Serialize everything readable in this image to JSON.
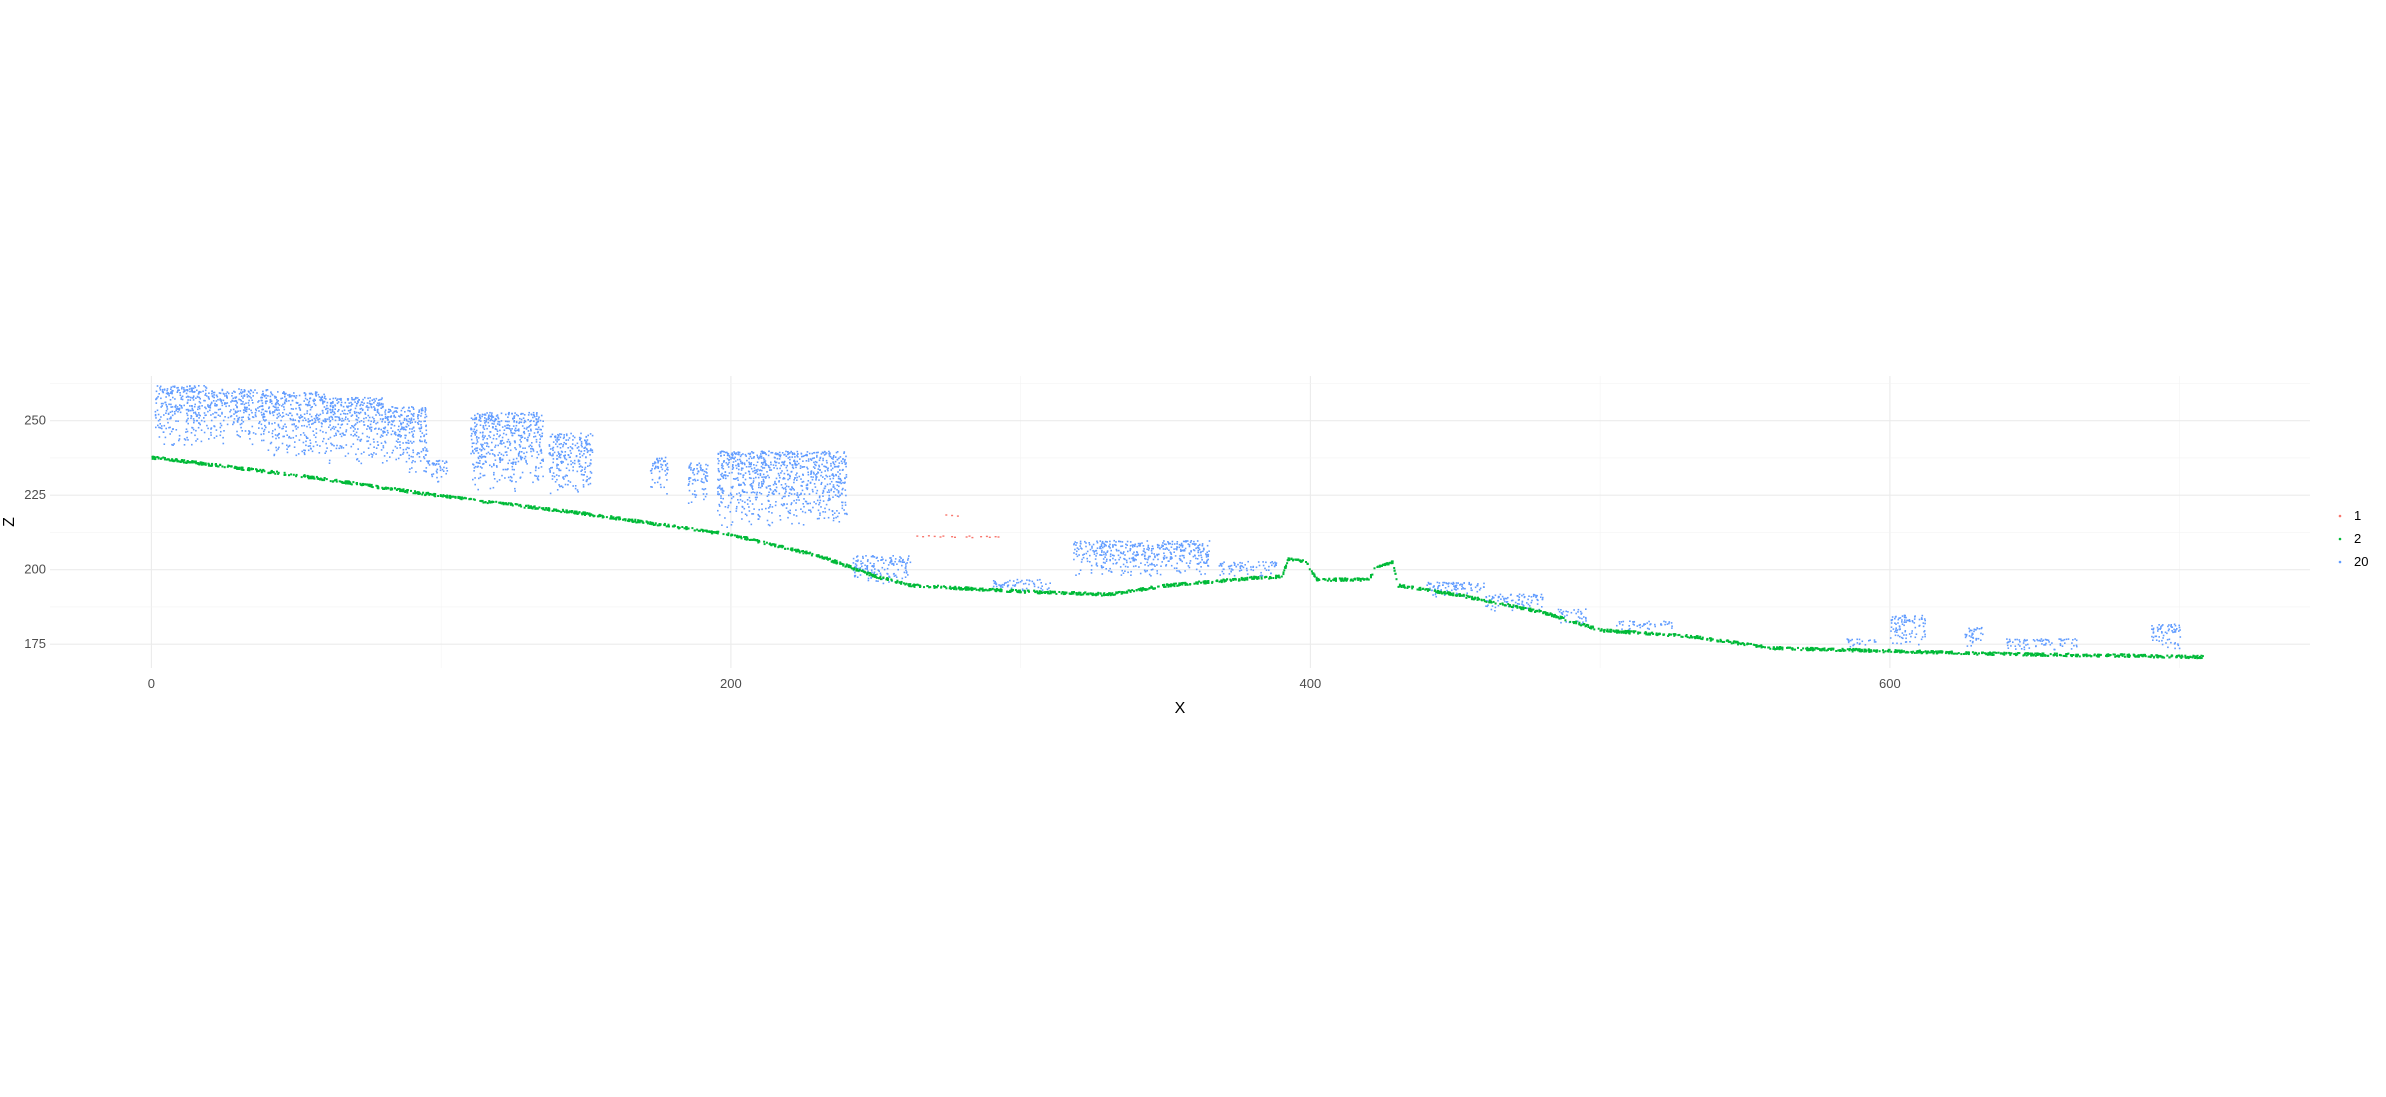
{
  "chart_data": {
    "type": "scatter",
    "title": "",
    "xlabel": "X",
    "ylabel": "Z",
    "xlim": [
      -35,
      745
    ],
    "ylim": [
      167,
      265
    ],
    "x_ticks": [
      0,
      200,
      400,
      600
    ],
    "x_tick_labels": [
      "0",
      "200",
      "400",
      "600"
    ],
    "y_ticks": [
      175,
      200,
      225,
      250
    ],
    "y_tick_labels": [
      "175",
      "200",
      "225",
      "250"
    ],
    "grid": true,
    "legend": {
      "title": "",
      "position": "right",
      "entries": [
        {
          "label": "1",
          "color": "#F8766D"
        },
        {
          "label": "2",
          "color": "#00BA38"
        },
        {
          "label": "20",
          "color": "#619CFF"
        }
      ]
    },
    "series": [
      {
        "name": "1",
        "color": "#F8766D",
        "points": [
          [
            264,
            211.5
          ],
          [
            266,
            211.3
          ],
          [
            268,
            211.6
          ],
          [
            270,
            211.4
          ],
          [
            272,
            211.2
          ],
          [
            273,
            211.5
          ],
          [
            276,
            211.3
          ],
          [
            277,
            211.1
          ],
          [
            274,
            218.6
          ],
          [
            276,
            218.4
          ],
          [
            278,
            218.2
          ],
          [
            281,
            211.2
          ],
          [
            282,
            211.5
          ],
          [
            283,
            211.0
          ],
          [
            286,
            211.3
          ],
          [
            288,
            211.4
          ],
          [
            289,
            211.1
          ],
          [
            291,
            211.3
          ],
          [
            292,
            211.2
          ]
        ]
      },
      {
        "name": "2",
        "color": "#00BA38",
        "ground_profile": [
          [
            0,
            238
          ],
          [
            50,
            232
          ],
          [
            100,
            225
          ],
          [
            150,
            219
          ],
          [
            200,
            212
          ],
          [
            230,
            205
          ],
          [
            250,
            198
          ],
          [
            262,
            195
          ],
          [
            300,
            193
          ],
          [
            330,
            192
          ],
          [
            350,
            195
          ],
          [
            380,
            197.5
          ],
          [
            390,
            198
          ],
          [
            392,
            204
          ],
          [
            398,
            203
          ],
          [
            402,
            197
          ],
          [
            420,
            197
          ],
          [
            422,
            201
          ],
          [
            428,
            203
          ],
          [
            430,
            195
          ],
          [
            450,
            192
          ],
          [
            480,
            186
          ],
          [
            500,
            180
          ],
          [
            530,
            178
          ],
          [
            560,
            174
          ],
          [
            600,
            173
          ],
          [
            640,
            172
          ],
          [
            680,
            171.5
          ],
          [
            708,
            171
          ]
        ],
        "n_points": 2400
      },
      {
        "name": "20",
        "color": "#619CFF",
        "clusters": [
          {
            "x": [
              1,
              20
            ],
            "z": [
              241,
              262
            ]
          },
          {
            "x": [
              20,
              40
            ],
            "z": [
              242,
              261
            ]
          },
          {
            "x": [
              40,
              60
            ],
            "z": [
              238,
              260
            ]
          },
          {
            "x": [
              60,
              80
            ],
            "z": [
              235,
              258
            ]
          },
          {
            "x": [
              80,
              95
            ],
            "z": [
              232,
              255
            ]
          },
          {
            "x": [
              95,
              102
            ],
            "z": [
              229,
              237
            ]
          },
          {
            "x": [
              110,
              135
            ],
            "z": [
              226,
              253
            ]
          },
          {
            "x": [
              137,
              152
            ],
            "z": [
              225,
              246
            ]
          },
          {
            "x": [
              172,
              178
            ],
            "z": [
              225,
              238
            ]
          },
          {
            "x": [
              185,
              192
            ],
            "z": [
              222,
              236
            ]
          },
          {
            "x": [
              195,
              240
            ],
            "z": [
              214,
              240
            ]
          },
          {
            "x": [
              242,
              262
            ],
            "z": [
              195,
              205
            ]
          },
          {
            "x": [
              290,
              310
            ],
            "z": [
              193,
              197
            ]
          },
          {
            "x": [
              318,
              365
            ],
            "z": [
              197,
              210
            ]
          },
          {
            "x": [
              368,
              388
            ],
            "z": [
              198,
              203
            ]
          },
          {
            "x": [
              440,
              460
            ],
            "z": [
              190,
              196
            ]
          },
          {
            "x": [
              460,
              480
            ],
            "z": [
              186,
              192
            ]
          },
          {
            "x": [
              485,
              495
            ],
            "z": [
              182,
              187
            ]
          },
          {
            "x": [
              505,
              525
            ],
            "z": [
              180,
              183
            ]
          },
          {
            "x": [
              585,
              595
            ],
            "z": [
              174,
              177
            ]
          },
          {
            "x": [
              600,
              612
            ],
            "z": [
              174,
              185
            ]
          },
          {
            "x": [
              625,
              632
            ],
            "z": [
              174,
              181
            ]
          },
          {
            "x": [
              640,
              665
            ],
            "z": [
              173,
              177
            ]
          },
          {
            "x": [
              690,
              700
            ],
            "z": [
              173,
              182
            ]
          }
        ],
        "n_points": 4500
      }
    ]
  }
}
